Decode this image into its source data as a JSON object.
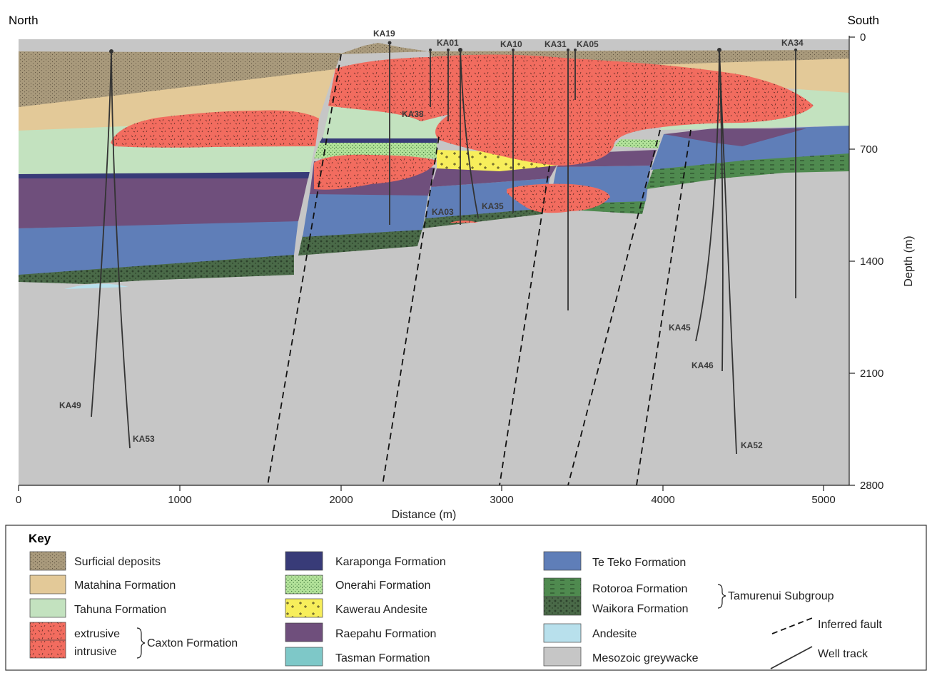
{
  "figure": {
    "corner_left": "North",
    "corner_right": "South",
    "x_axis": {
      "label": "Distance (m)",
      "ticks": [
        "0",
        "1000",
        "2000",
        "3000",
        "4000",
        "5000"
      ]
    },
    "y_axis": {
      "label": "Depth (m)",
      "ticks": [
        "0",
        "700",
        "1400",
        "2100",
        "2800"
      ]
    },
    "wells": [
      "KA19",
      "KA01",
      "KA10",
      "KA31",
      "KA05",
      "KA34",
      "KA38",
      "KA03",
      "KA35",
      "KA45",
      "KA46",
      "KA49",
      "KA53",
      "KA52"
    ]
  },
  "key": {
    "title": "Key",
    "col1": [
      "Surficial deposits",
      "Matahina Formation",
      "Tahuna Formation",
      "extrusive",
      "intrusive"
    ],
    "caxton_group": "Caxton Formation",
    "col2": [
      "Karaponga Formation",
      "Onerahi Formation",
      "Kawerau Andesite",
      "Raepahu Formation",
      "Tasman Formation"
    ],
    "col3": [
      "Te Teko Formation",
      "Rotoroa Formation",
      "Waikora Formation",
      "Andesite",
      "Mesozoic greywacke"
    ],
    "tamurenui_group": "Tamurenui Subgroup",
    "lines": [
      "Inferred fault",
      "Well track"
    ]
  },
  "colors": {
    "surficial": "#a99a7c",
    "matahina": "#e3c998",
    "tahuna": "#c3e2bf",
    "caxton": "#f26c5f",
    "karaponga": "#383b78",
    "onerahi": "#b3e29a",
    "kawerau": "#f7ee5b",
    "raepahu": "#6f4f7c",
    "tasman": "#7ec8c8",
    "teteko": "#5f7eb8",
    "rotoroa": "#4f8a4f",
    "waikora": "#4a6a48",
    "andesite": "#b8e0ec",
    "greywacke": "#c6c6c6"
  }
}
